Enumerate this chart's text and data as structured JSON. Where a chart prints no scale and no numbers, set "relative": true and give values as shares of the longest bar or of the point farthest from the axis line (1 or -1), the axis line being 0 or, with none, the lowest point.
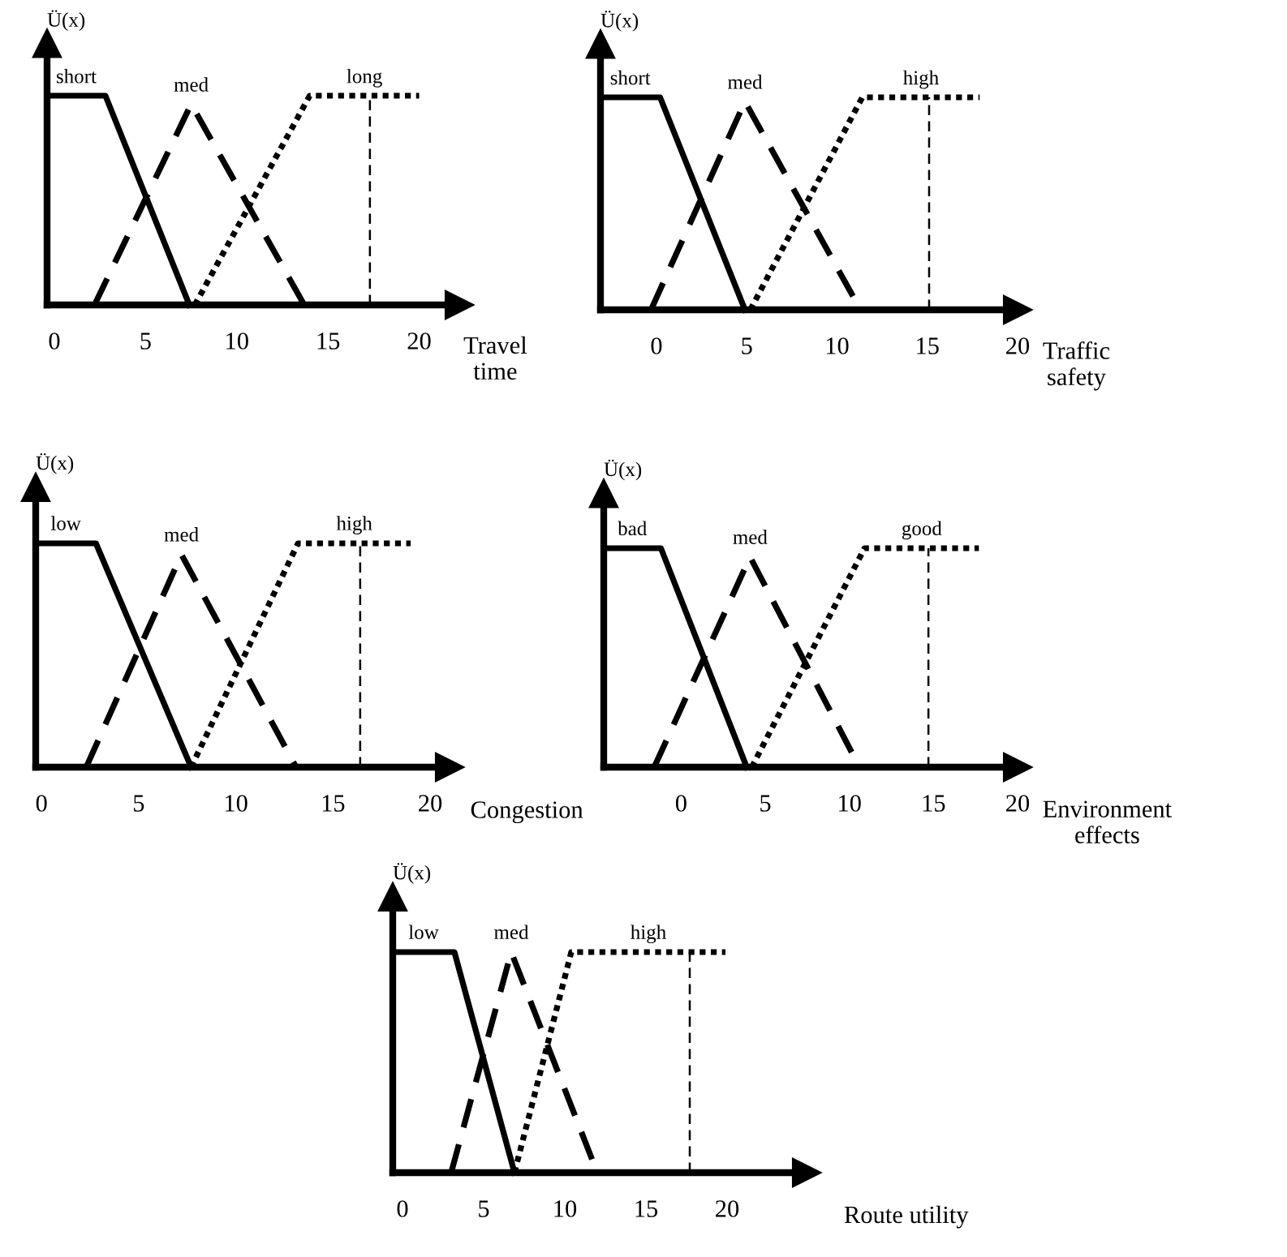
{
  "chart_data": [
    {
      "type": "line",
      "relative": true,
      "ylabel": "Ü(x)",
      "xlabel": "Travel\ntime",
      "xlim": [
        -0.4,
        22.2
      ],
      "xticks": [
        0,
        5,
        10,
        15,
        20
      ],
      "grid": false,
      "series": [
        {
          "name": "short",
          "color": "#000000",
          "line_style": "solid",
          "x": [
            -0.4,
            2.8,
            7.4
          ],
          "values": [
            1,
            1,
            0
          ]
        },
        {
          "name": "med",
          "color": "#000000",
          "line_style": "dashed",
          "x": [
            2.2,
            7.5,
            13.7
          ],
          "values": [
            0,
            0.96,
            0
          ]
        },
        {
          "name": "long",
          "color": "#000000",
          "line_style": "dotted",
          "x": [
            7.7,
            14.0,
            20.0
          ],
          "values": [
            0,
            1,
            1
          ]
        }
      ],
      "ref_lines": [
        {
          "axis": "x",
          "value": 17.3,
          "color": "#000000",
          "line_style": "dashed"
        }
      ]
    },
    {
      "type": "line",
      "relative": true,
      "ylabel": "Ü(x)",
      "xlabel": "Traffic\nsafety",
      "xlim": [
        -3.1,
        20
      ],
      "xticks": [
        0,
        5,
        10,
        15,
        20
      ],
      "grid": false,
      "series": [
        {
          "name": "short",
          "color": "#000000",
          "line_style": "solid",
          "x": [
            -3.1,
            0.2,
            4.9
          ],
          "values": [
            1,
            1,
            0
          ]
        },
        {
          "name": "med",
          "color": "#000000",
          "line_style": "dashed",
          "x": [
            -0.3,
            4.9,
            11.3
          ],
          "values": [
            0,
            0.98,
            0
          ]
        },
        {
          "name": "high",
          "color": "#000000",
          "line_style": "dotted",
          "x": [
            5.2,
            11.4,
            17.9
          ],
          "values": [
            0,
            1,
            1
          ]
        }
      ],
      "ref_lines": [
        {
          "axis": "x",
          "value": 15.1,
          "color": "#000000",
          "line_style": "dashed"
        }
      ]
    },
    {
      "type": "line",
      "relative": true,
      "ylabel": "Ü(x)",
      "xlabel": "Congestion",
      "xlim": [
        -0.3,
        21.0
      ],
      "xticks": [
        0,
        5,
        10,
        15,
        20
      ],
      "grid": false,
      "series": [
        {
          "name": "low",
          "color": "#000000",
          "line_style": "solid",
          "x": [
            -0.3,
            2.8,
            7.7
          ],
          "values": [
            1,
            1,
            0
          ]
        },
        {
          "name": "med",
          "color": "#000000",
          "line_style": "dashed",
          "x": [
            2.3,
            7.2,
            13.1
          ],
          "values": [
            0,
            0.95,
            0
          ]
        },
        {
          "name": "high",
          "color": "#000000",
          "line_style": "dotted",
          "x": [
            7.7,
            13.2,
            19.0
          ],
          "values": [
            0,
            1,
            1
          ]
        }
      ],
      "ref_lines": [
        {
          "axis": "x",
          "value": 16.4,
          "color": "#000000",
          "line_style": "dashed"
        }
      ]
    },
    {
      "type": "line",
      "relative": true,
      "ylabel": "Ü(x)",
      "xlabel": "Environment\neffects",
      "xlim": [
        -4.6,
        20
      ],
      "xticks": [
        0,
        5,
        10,
        15,
        20
      ],
      "grid": false,
      "series": [
        {
          "name": "bad",
          "color": "#000000",
          "line_style": "solid",
          "x": [
            -4.6,
            -1.2,
            3.9
          ],
          "values": [
            1,
            1,
            0
          ]
        },
        {
          "name": "med",
          "color": "#000000",
          "line_style": "dashed",
          "x": [
            -1.6,
            4.1,
            10.6
          ],
          "values": [
            0,
            0.96,
            0
          ]
        },
        {
          "name": "good",
          "color": "#000000",
          "line_style": "dotted",
          "x": [
            4.2,
            10.9,
            17.7
          ],
          "values": [
            0,
            1,
            1
          ]
        }
      ],
      "ref_lines": [
        {
          "axis": "x",
          "value": 14.7,
          "color": "#000000",
          "line_style": "dashed"
        }
      ]
    },
    {
      "type": "line",
      "relative": true,
      "ylabel": "Ü(x)",
      "xlabel": "Route utility",
      "xlim": [
        -0.6,
        24.9
      ],
      "xticks": [
        0,
        5,
        10,
        15,
        20
      ],
      "grid": false,
      "series": [
        {
          "name": "low",
          "color": "#000000",
          "line_style": "solid",
          "x": [
            -0.6,
            3.2,
            6.9
          ],
          "values": [
            1,
            1,
            0
          ]
        },
        {
          "name": "med",
          "color": "#000000",
          "line_style": "dashed",
          "x": [
            3.0,
            6.7,
            12.0
          ],
          "values": [
            0,
            1,
            0
          ]
        },
        {
          "name": "high",
          "color": "#000000",
          "line_style": "dotted",
          "x": [
            6.9,
            10.4,
            19.9
          ],
          "values": [
            0,
            1,
            1
          ]
        }
      ],
      "ref_lines": [
        {
          "axis": "x",
          "value": 17.7,
          "color": "#000000",
          "line_style": "dashed"
        }
      ]
    }
  ]
}
